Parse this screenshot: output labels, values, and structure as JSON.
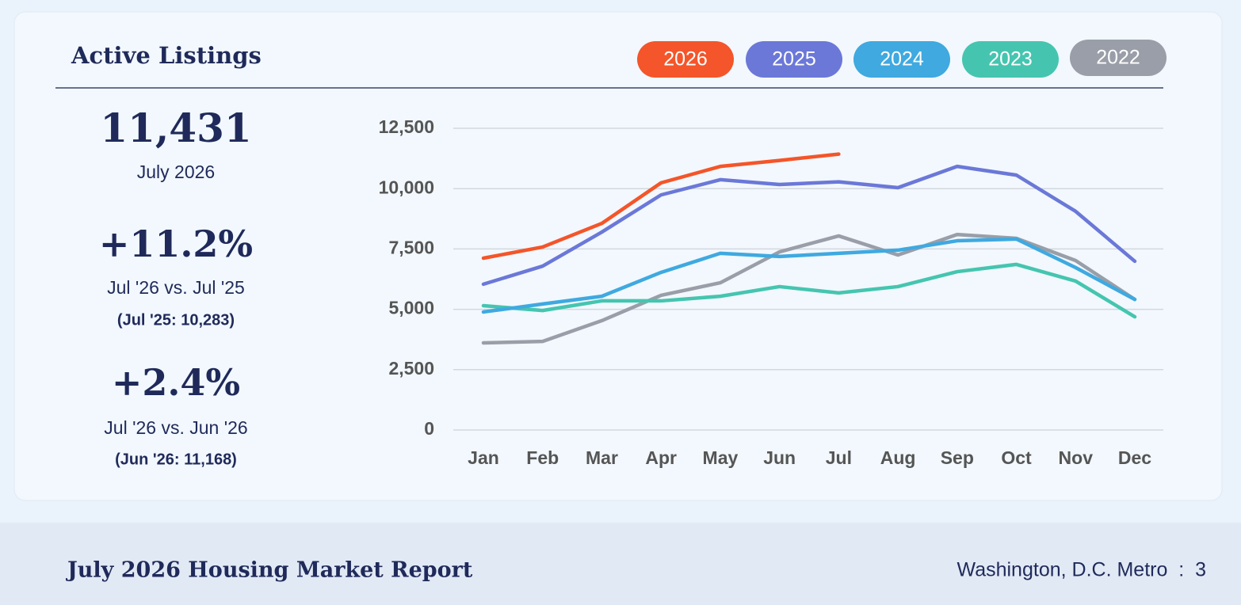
{
  "chart_data": {
    "type": "line",
    "title": "Active Listings",
    "categories": [
      "Jan",
      "Feb",
      "Mar",
      "Apr",
      "May",
      "Jun",
      "Jul",
      "Aug",
      "Sep",
      "Oct",
      "Nov",
      "Dec"
    ],
    "series": [
      {
        "name": "2026",
        "color": "#f4552a",
        "values": [
          7120,
          7580,
          8560,
          10240,
          10920,
          11168,
          11431,
          null,
          null,
          null,
          null,
          null
        ]
      },
      {
        "name": "2025",
        "color": "#6b78d8",
        "values": [
          6040,
          6790,
          8200,
          9740,
          10370,
          10170,
          10283,
          10040,
          10920,
          10560,
          9060,
          6990
        ]
      },
      {
        "name": "2024",
        "color": "#3fa9e0",
        "values": [
          4890,
          5220,
          5540,
          6530,
          7320,
          7190,
          7320,
          7450,
          7840,
          7910,
          6730,
          5410
        ]
      },
      {
        "name": "2023",
        "color": "#45c5b0",
        "values": [
          5150,
          4950,
          5350,
          5350,
          5540,
          5940,
          5680,
          5940,
          6560,
          6860,
          6170,
          4690
        ]
      },
      {
        "name": "2022",
        "color": "#9a9ea8",
        "values": [
          3610,
          3670,
          4530,
          5580,
          6100,
          7380,
          8040,
          7250,
          8100,
          7940,
          7020,
          5410
        ]
      }
    ],
    "ylim": [
      0,
      12500
    ],
    "yticks": [
      0,
      {
        "value": 2500,
        "label": "2,500"
      },
      {
        "value": 5000,
        "label": "5,000"
      },
      {
        "value": 7500,
        "label": "7,500"
      },
      {
        "value": 10000,
        "label": "10,000"
      },
      {
        "value": 12500,
        "label": "12,500"
      }
    ],
    "grid": true
  },
  "stats": [
    {
      "value": "11,431",
      "label": "July 2026"
    },
    {
      "value": "+11.2%",
      "label": "Jul '26 vs. Jul '25",
      "note": "(Jul '25: 10,283)"
    },
    {
      "value": "+2.4%",
      "label": "Jul '26 vs. Jun '26",
      "note": "(Jun '26: 11,168)"
    }
  ],
  "footer": {
    "title": "July 2026 Housing Market Report",
    "location": "Washington, D.C. Metro  :  3"
  }
}
